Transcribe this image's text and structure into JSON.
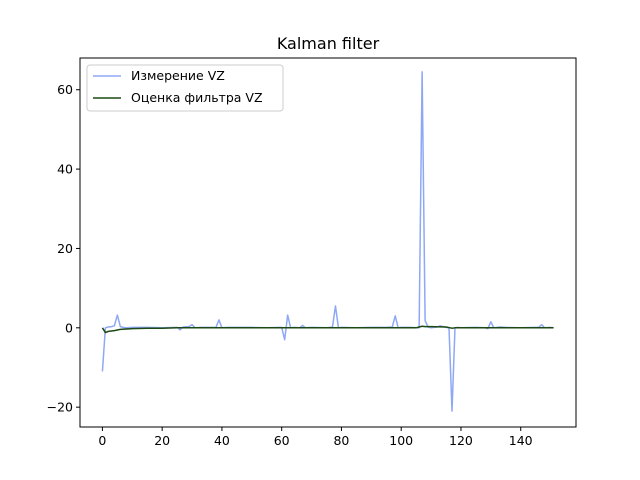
{
  "chart_data": {
    "type": "line",
    "title": "Kalman filter",
    "xlabel": "",
    "ylabel": "",
    "xlim": [
      -7.5,
      158.5
    ],
    "ylim": [
      -25,
      68
    ],
    "xticks": [
      0,
      20,
      40,
      60,
      80,
      100,
      120,
      140
    ],
    "yticks": [
      -20,
      0,
      20,
      40,
      60
    ],
    "xtick_labels": [
      "0",
      "20",
      "40",
      "60",
      "80",
      "100",
      "120",
      "140"
    ],
    "ytick_labels": [
      "−20",
      "0",
      "20",
      "40",
      "60"
    ],
    "grid": false,
    "legend_position": "upper-left",
    "series": [
      {
        "name": "Измерение VZ",
        "color": "#8fa8f5",
        "x": [
          0,
          1,
          2,
          3,
          4,
          5,
          6,
          7,
          8,
          10,
          15,
          20,
          25,
          26,
          27,
          29,
          30,
          31,
          33,
          36,
          38,
          39,
          40,
          42,
          45,
          50,
          55,
          60,
          61,
          62,
          63,
          64,
          66,
          67,
          68,
          70,
          75,
          77,
          78,
          79,
          80,
          85,
          90,
          95,
          97,
          98,
          99,
          100,
          103,
          105,
          106,
          107,
          108,
          109,
          110,
          112,
          113,
          115,
          116,
          117,
          118,
          119,
          120,
          125,
          128,
          129,
          130,
          131,
          133,
          135,
          140,
          145,
          146,
          147,
          148,
          150,
          151
        ],
        "y": [
          -11,
          0,
          0.2,
          0.3,
          0.5,
          3.2,
          0.3,
          0.1,
          0,
          0.1,
          0.1,
          0,
          0.1,
          -0.5,
          0.2,
          0.3,
          0.8,
          0,
          0.1,
          0.1,
          0.1,
          2,
          0,
          0.1,
          0.1,
          0.1,
          0,
          0.1,
          -3,
          3.2,
          0,
          0.1,
          0,
          0.6,
          0,
          0.1,
          0,
          0.2,
          5.5,
          0,
          0.1,
          0,
          0.1,
          0.1,
          0.2,
          3,
          0,
          0.1,
          0.1,
          0,
          0,
          64.5,
          1.8,
          0.2,
          0,
          0.2,
          0.5,
          0.1,
          0,
          -21,
          0,
          0.1,
          0,
          0.1,
          0,
          -0.2,
          1.5,
          0,
          0.2,
          0.1,
          0,
          0.1,
          0.1,
          0.8,
          0,
          0.1,
          0
        ]
      },
      {
        "name": "Оценка фильтра VZ",
        "color": "#1d4a14",
        "x": [
          0,
          1,
          2,
          4,
          6,
          8,
          10,
          15,
          20,
          25,
          30,
          40,
          60,
          80,
          100,
          105,
          106,
          107,
          108,
          110,
          115,
          117,
          118,
          120,
          130,
          140,
          151
        ],
        "y": [
          0,
          -1.2,
          -0.9,
          -0.7,
          -0.4,
          -0.3,
          -0.2,
          -0.1,
          -0.1,
          0,
          0,
          0,
          0,
          0,
          0,
          0,
          0.2,
          0.4,
          0.3,
          0.3,
          0.2,
          -0.1,
          0,
          0,
          0,
          0,
          0
        ]
      }
    ]
  }
}
